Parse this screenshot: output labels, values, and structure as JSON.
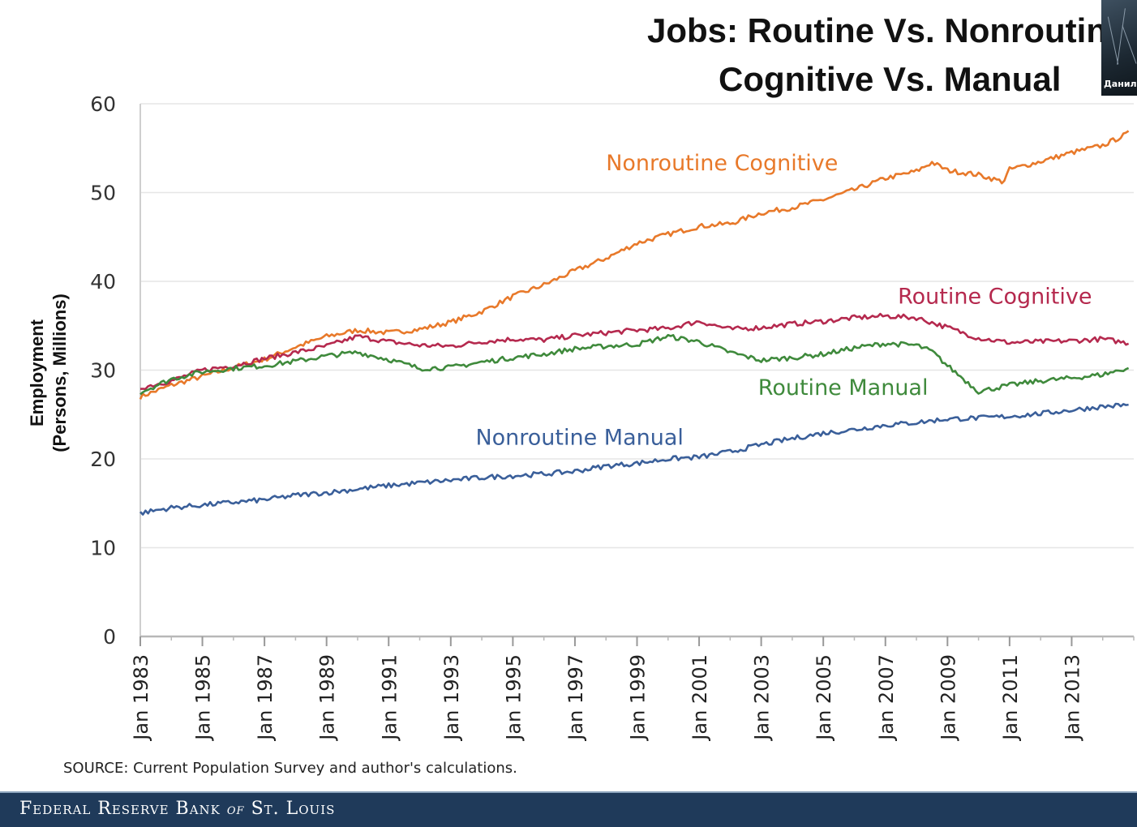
{
  "page": {
    "title_line1": "Jobs: Routine Vs. Nonroutin",
    "title_line2": "Cognitive Vs. Manual",
    "ylabel_line1": "Employment",
    "ylabel_line2": "(Persons, Millions)",
    "source": "SOURCE: Current Population Survey and author's calculations.",
    "footer_main": "Federal Reserve Bank",
    "footer_of": "of",
    "footer_city": "St. Louis",
    "webcam_name": "Данил"
  },
  "colors": {
    "nonroutine_cognitive": "#e8792a",
    "routine_cognitive": "#b5294e",
    "routine_manual": "#3f8a3c",
    "nonroutine_manual": "#3a5f9a",
    "grid": "#e6e6e6",
    "axis": "#cfcfcf",
    "footer": "#1f3a5a"
  },
  "chart_data": {
    "type": "line",
    "title": "Jobs: Routine Vs. Nonroutine Cognitive Vs. Manual",
    "xlabel": "",
    "ylabel": "Employment (Persons, Millions)",
    "ylim": [
      0,
      60
    ],
    "xlim": [
      1983,
      2015
    ],
    "yticks": [
      "0",
      "10",
      "20",
      "30",
      "40",
      "50",
      "60"
    ],
    "xtick_years": [
      1983,
      1985,
      1987,
      1989,
      1991,
      1993,
      1995,
      1997,
      1999,
      2001,
      2003,
      2005,
      2007,
      2009,
      2011,
      2013
    ],
    "xtick_labels": [
      "Jan 1983",
      "Jan 1985",
      "Jan 1987",
      "Jan 1989",
      "Jan 1991",
      "Jan 1993",
      "Jan 1995",
      "Jan 1997",
      "Jan 1999",
      "Jan 2001",
      "Jan 2003",
      "Jan 2005",
      "Jan 2007",
      "Jan 2009",
      "Jan 2011",
      "Jan 2013"
    ],
    "grid": true,
    "series": [
      {
        "name": "Nonroutine Cognitive",
        "color_key": "nonroutine_cognitive",
        "label_x": 1998.0,
        "label_y": 52.5,
        "x": [
          1983,
          1984,
          1985,
          1986,
          1987,
          1988,
          1989,
          1990,
          1991,
          1992,
          1993,
          1994,
          1995,
          1996,
          1997,
          1998,
          1999,
          2000,
          2001,
          2002,
          2003,
          2004,
          2005,
          2006,
          2007,
          2008,
          2008.5,
          2009,
          2010,
          2010.8,
          2011,
          2012,
          2013,
          2014,
          2014.9
        ],
        "y": [
          27.0,
          28.3,
          29.3,
          30.3,
          31.2,
          32.6,
          33.8,
          34.5,
          34.2,
          34.6,
          35.4,
          36.6,
          38.3,
          39.6,
          41.2,
          42.6,
          44.3,
          45.3,
          46.2,
          46.5,
          47.7,
          48.3,
          49.2,
          50.3,
          51.6,
          52.4,
          53.4,
          52.5,
          52.0,
          51.2,
          52.6,
          53.5,
          54.5,
          55.3,
          56.8
        ]
      },
      {
        "name": "Routine Cognitive",
        "color_key": "routine_cognitive",
        "label_x": 2007.4,
        "label_y": 37.5,
        "x": [
          1983,
          1984,
          1985,
          1986,
          1987,
          1988,
          1989,
          1990,
          1991,
          1992,
          1993,
          1994,
          1995,
          1996,
          1997,
          1998,
          1999,
          2000,
          2001,
          2002,
          2003,
          2004,
          2005,
          2006,
          2007,
          2008,
          2009,
          2010,
          2011,
          2012,
          2013,
          2014,
          2014.9
        ],
        "y": [
          28.0,
          28.8,
          30.0,
          30.5,
          31.3,
          32.0,
          32.7,
          33.8,
          33.2,
          32.8,
          32.7,
          33.2,
          33.5,
          33.4,
          33.9,
          34.2,
          34.5,
          34.7,
          35.5,
          34.6,
          34.8,
          35.2,
          35.5,
          35.9,
          36.1,
          35.9,
          34.8,
          33.6,
          33.1,
          33.2,
          33.3,
          33.5,
          33.0
        ]
      },
      {
        "name": "Routine Manual",
        "color_key": "routine_manual",
        "label_x": 2002.9,
        "label_y": 27.2,
        "x": [
          1983,
          1984,
          1985,
          1986,
          1987,
          1988,
          1989,
          1990,
          1991,
          1992,
          1993,
          1994,
          1995,
          1996,
          1997,
          1998,
          1999,
          2000,
          2001,
          2002,
          2003,
          2004,
          2005,
          2006,
          2007,
          2008,
          2008.5,
          2009,
          2010,
          2011,
          2012,
          2013,
          2014,
          2014.9
        ],
        "y": [
          27.5,
          29.0,
          29.8,
          30.2,
          30.5,
          31.0,
          31.6,
          32.0,
          31.2,
          30.2,
          30.3,
          30.9,
          31.4,
          31.8,
          32.4,
          32.7,
          32.9,
          33.8,
          33.2,
          32.0,
          31.1,
          31.4,
          31.8,
          32.5,
          33.0,
          32.8,
          32.1,
          30.5,
          27.6,
          28.3,
          28.8,
          29.1,
          29.5,
          30.3
        ]
      },
      {
        "name": "Nonroutine Manual",
        "color_key": "nonroutine_manual",
        "label_x": 1993.8,
        "label_y": 21.6,
        "x": [
          1983,
          1984,
          1985,
          1986,
          1987,
          1988,
          1989,
          1990,
          1991,
          1992,
          1993,
          1994,
          1995,
          1996,
          1997,
          1998,
          1999,
          2000,
          2001,
          2002,
          2003,
          2004,
          2005,
          2006,
          2007,
          2008,
          2009,
          2010,
          2011,
          2012,
          2013,
          2014,
          2014.9
        ],
        "y": [
          13.9,
          14.5,
          14.8,
          15.1,
          15.4,
          15.9,
          16.2,
          16.6,
          17.0,
          17.3,
          17.6,
          17.9,
          18.1,
          18.3,
          18.6,
          19.2,
          19.5,
          20.0,
          20.2,
          20.8,
          21.6,
          22.3,
          22.9,
          23.3,
          23.8,
          24.1,
          24.5,
          24.6,
          24.8,
          25.1,
          25.5,
          25.9,
          26.1
        ]
      }
    ]
  }
}
